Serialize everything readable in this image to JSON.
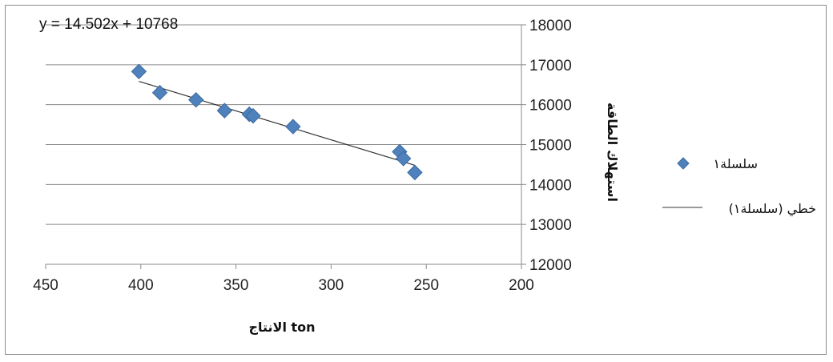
{
  "chart_data": {
    "type": "scatter",
    "title": "",
    "xlabel": "الانتاج ton",
    "ylabel": "استهلاك الطاقة",
    "xlim": [
      200,
      450
    ],
    "ylim": [
      12000,
      18000
    ],
    "x_reversed": true,
    "y_axis_side": "right",
    "grid": "horizontal",
    "legend_position": "right",
    "x_ticks": [
      "450",
      "400",
      "350",
      "300",
      "250",
      "200"
    ],
    "y_ticks": [
      "18000",
      "17000",
      "16000",
      "15000",
      "14000",
      "13000",
      "12000"
    ],
    "series": [
      {
        "name": "سلسلة١",
        "marker": "diamond",
        "color": "#4f81bd",
        "points": [
          {
            "x": 401,
            "y": 16830
          },
          {
            "x": 390,
            "y": 16300
          },
          {
            "x": 371,
            "y": 16120
          },
          {
            "x": 356,
            "y": 15850
          },
          {
            "x": 343,
            "y": 15760
          },
          {
            "x": 341,
            "y": 15720
          },
          {
            "x": 320,
            "y": 15450
          },
          {
            "x": 264,
            "y": 14820
          },
          {
            "x": 262,
            "y": 14650
          },
          {
            "x": 256,
            "y": 14300
          }
        ]
      }
    ],
    "trendline": {
      "name": "خطي (سلسلة١)",
      "type": "linear",
      "slope": 14.502,
      "intercept": 10768,
      "x_range": [
        401,
        256
      ],
      "color": "#333333",
      "equation_label": "y = 14.502x + 10768"
    }
  }
}
